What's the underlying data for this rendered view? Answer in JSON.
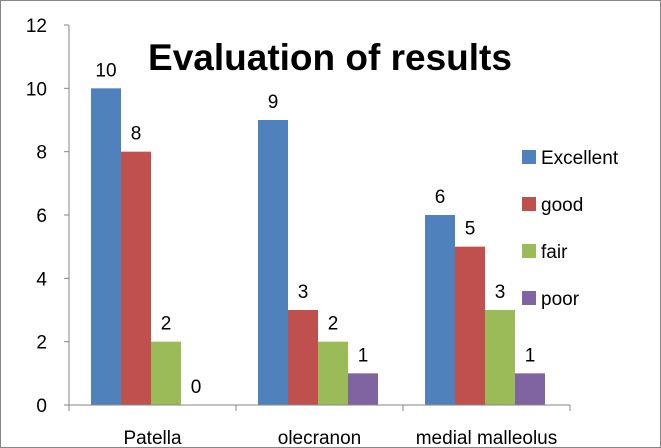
{
  "chart_data": {
    "type": "bar",
    "title": "Evaluation of results",
    "xlabel": "",
    "ylabel": "",
    "categories": [
      "Patella",
      "olecranon",
      "medial malleolus"
    ],
    "series": [
      {
        "name": "Excellent",
        "color": "#4f81bd",
        "values": [
          10,
          9,
          6
        ]
      },
      {
        "name": "good",
        "color": "#c0504d",
        "values": [
          8,
          3,
          5
        ]
      },
      {
        "name": "fair",
        "color": "#9bbb59",
        "values": [
          2,
          2,
          3
        ]
      },
      {
        "name": "poor",
        "color": "#8064a2",
        "values": [
          0,
          1,
          1
        ]
      }
    ],
    "ylim": [
      0,
      12
    ],
    "yticks": [
      0,
      2,
      4,
      6,
      8,
      10,
      12
    ],
    "grid": false,
    "legend": "right"
  }
}
